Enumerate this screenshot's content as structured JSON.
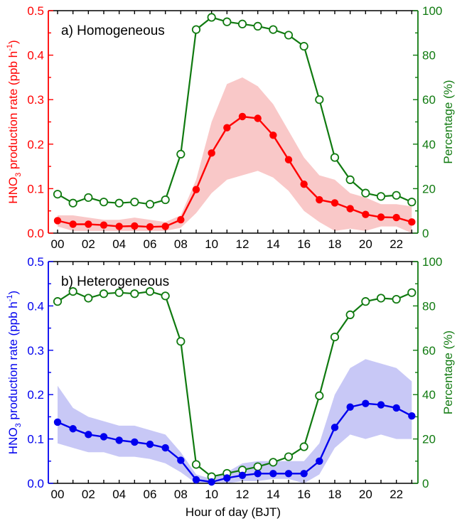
{
  "chart_data": [
    {
      "type": "line",
      "title": "a) Homogeneous",
      "xlabel": "",
      "ylabel": "HNO3 production rate (ppb h-1)",
      "ylabel_parts": {
        "pre": "HNO",
        "sub": "3",
        "mid": " production rate (ppb h",
        "sup": "-1",
        "post": ")"
      },
      "y2label": "Percentage (%)",
      "x": [
        0,
        1,
        2,
        3,
        4,
        5,
        6,
        7,
        8,
        9,
        10,
        11,
        12,
        13,
        14,
        15,
        16,
        17,
        18,
        19,
        20,
        21,
        22,
        23
      ],
      "xticks": [
        "00",
        "02",
        "04",
        "06",
        "08",
        "10",
        "12",
        "14",
        "16",
        "18",
        "20",
        "22"
      ],
      "xlim": [
        -0.6,
        23.4
      ],
      "ylim": [
        0,
        0.5
      ],
      "yticks": [
        "0.0",
        "0.1",
        "0.2",
        "0.3",
        "0.4",
        "0.5"
      ],
      "y2lim": [
        0,
        100
      ],
      "y2ticks": [
        "0",
        "20",
        "40",
        "60",
        "80",
        "100"
      ],
      "grid": false,
      "colors": {
        "primary": "#ff0000",
        "band": "#f9c8c8",
        "secondary": "#107a10"
      },
      "series": [
        {
          "name": "HNO3 production rate",
          "axis": "left",
          "marker": "filled-circle",
          "values": [
            0.028,
            0.02,
            0.02,
            0.018,
            0.015,
            0.016,
            0.014,
            0.015,
            0.03,
            0.098,
            0.18,
            0.237,
            0.262,
            0.258,
            0.22,
            0.165,
            0.11,
            0.075,
            0.068,
            0.055,
            0.042,
            0.036,
            0.035,
            0.025
          ],
          "band_upper": [
            0.04,
            0.04,
            0.035,
            0.03,
            0.03,
            0.035,
            0.03,
            0.025,
            0.04,
            0.12,
            0.25,
            0.335,
            0.35,
            0.33,
            0.29,
            0.23,
            0.17,
            0.13,
            0.12,
            0.09,
            0.08,
            0.065,
            0.065,
            0.06
          ],
          "band_lower": [
            0.015,
            0.005,
            0.005,
            0.005,
            0.005,
            0.005,
            0.005,
            0.005,
            0.012,
            0.045,
            0.09,
            0.12,
            0.13,
            0.14,
            0.125,
            0.095,
            0.05,
            0.025,
            0.005,
            0.01,
            0.005,
            0.015,
            0.015,
            0.0
          ]
        },
        {
          "name": "Percentage",
          "axis": "right",
          "marker": "open-circle",
          "values": [
            17.5,
            13.5,
            16,
            14,
            13.5,
            14,
            13,
            15,
            35.5,
            91.5,
            97,
            95,
            94,
            93,
            91.5,
            89,
            84,
            60,
            34,
            24,
            18,
            16.5,
            17,
            14
          ]
        }
      ]
    },
    {
      "type": "line",
      "title": "b) Heterogeneous",
      "xlabel": "Hour of day (BJT)",
      "ylabel": "HNO3 production rate (ppb h-1)",
      "ylabel_parts": {
        "pre": "HNO",
        "sub": "3",
        "mid": " production rate (ppb h",
        "sup": "-1",
        "post": ")"
      },
      "y2label": "Percentage (%)",
      "x": [
        0,
        1,
        2,
        3,
        4,
        5,
        6,
        7,
        8,
        9,
        10,
        11,
        12,
        13,
        14,
        15,
        16,
        17,
        18,
        19,
        20,
        21,
        22,
        23
      ],
      "xticks": [
        "00",
        "02",
        "04",
        "06",
        "08",
        "10",
        "12",
        "14",
        "16",
        "18",
        "20",
        "22"
      ],
      "xlim": [
        -0.6,
        23.4
      ],
      "ylim": [
        0,
        0.5
      ],
      "yticks": [
        "0.0",
        "0.1",
        "0.2",
        "0.3",
        "0.4",
        "0.5"
      ],
      "y2lim": [
        0,
        100
      ],
      "y2ticks": [
        "0",
        "20",
        "40",
        "60",
        "80",
        "100"
      ],
      "grid": false,
      "colors": {
        "primary": "#0000ee",
        "band": "#c8c8f6",
        "secondary": "#107a10"
      },
      "series": [
        {
          "name": "HNO3 production rate",
          "axis": "left",
          "marker": "filled-circle",
          "values": [
            0.138,
            0.123,
            0.11,
            0.105,
            0.097,
            0.093,
            0.088,
            0.08,
            0.052,
            0.008,
            0.003,
            0.012,
            0.018,
            0.022,
            0.022,
            0.022,
            0.022,
            0.05,
            0.126,
            0.172,
            0.18,
            0.177,
            0.17,
            0.152
          ],
          "band_upper": [
            0.22,
            0.17,
            0.15,
            0.14,
            0.13,
            0.13,
            0.12,
            0.11,
            0.07,
            0.02,
            0.01,
            0.025,
            0.045,
            0.05,
            0.05,
            0.05,
            0.05,
            0.09,
            0.2,
            0.26,
            0.28,
            0.27,
            0.26,
            0.23
          ],
          "band_lower": [
            0.09,
            0.08,
            0.07,
            0.07,
            0.06,
            0.06,
            0.055,
            0.045,
            0.025,
            0.0,
            0.0,
            0.0,
            0.005,
            0.005,
            0.01,
            0.01,
            0.0,
            0.02,
            0.08,
            0.11,
            0.1,
            0.11,
            0.1,
            0.1
          ]
        },
        {
          "name": "Percentage",
          "axis": "right",
          "marker": "open-circle",
          "values": [
            82,
            86.5,
            83.5,
            85.5,
            86,
            85.5,
            86.5,
            84.5,
            64,
            8.5,
            3,
            4.5,
            6,
            7.5,
            9.5,
            12,
            16.5,
            39.5,
            66,
            76,
            82,
            83.5,
            83,
            86
          ]
        }
      ]
    }
  ]
}
